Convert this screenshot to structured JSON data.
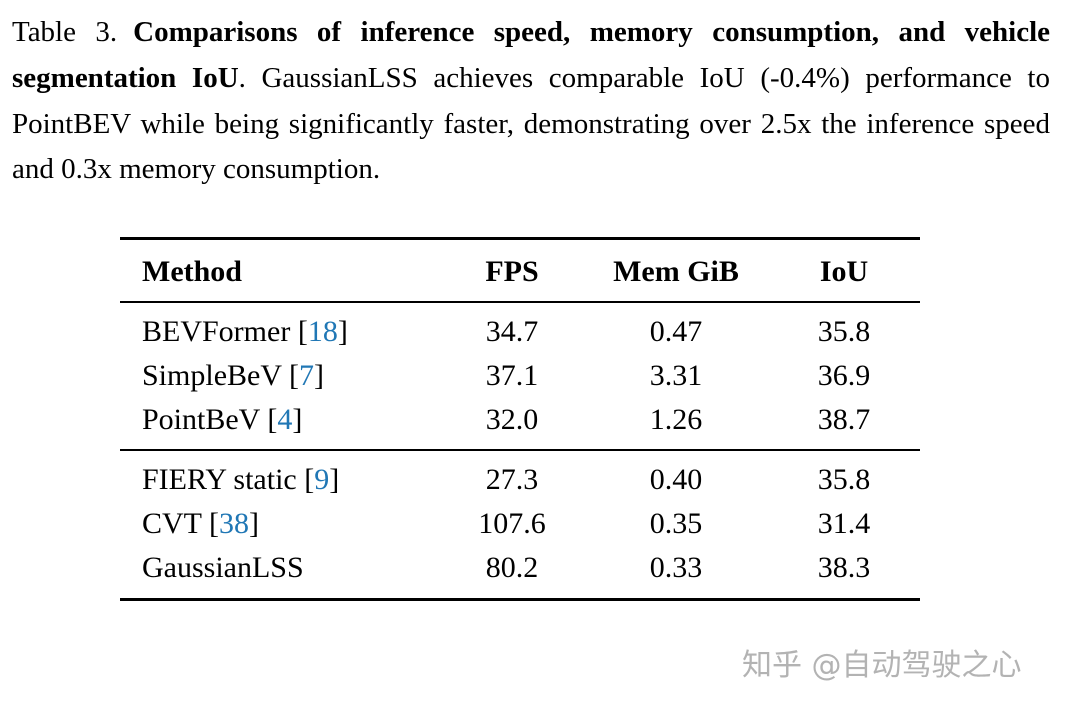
{
  "colors": {
    "citation_link": "#2077b5",
    "text": "#000000",
    "watermark": "#a8a8a8",
    "background": "#ffffff"
  },
  "caption": {
    "label": "Table 3.",
    "bold": "Comparisons of inference speed, memory consumption, and vehicle segmentation IoU",
    "rest": ". GaussianLSS achieves comparable IoU (-0.4%) performance to PointBEV while being significantly faster, demonstrating over 2.5x the inference speed and 0.3x memory consumption."
  },
  "table": {
    "headers": [
      "Method",
      "FPS",
      "Mem GiB",
      "IoU"
    ],
    "rows": [
      {
        "name": "BEVFormer ",
        "bracket_open": "[",
        "cite": "18",
        "bracket_close": "]",
        "fps": "34.7",
        "mem": "0.47",
        "iou": "35.8"
      },
      {
        "name": "SimpleBeV ",
        "bracket_open": "[",
        "cite": "7",
        "bracket_close": "]",
        "fps": "37.1",
        "mem": "3.31",
        "iou": "36.9"
      },
      {
        "name": "PointBeV ",
        "bracket_open": "[",
        "cite": "4",
        "bracket_close": "]",
        "fps": "32.0",
        "mem": "1.26",
        "iou": "38.7"
      },
      {
        "name": "FIERY static ",
        "bracket_open": "[",
        "cite": "9",
        "bracket_close": "]",
        "fps": "27.3",
        "mem": "0.40",
        "iou": "35.8"
      },
      {
        "name": "CVT ",
        "bracket_open": "[",
        "cite": "38",
        "bracket_close": "]",
        "fps": "107.6",
        "mem": "0.35",
        "iou": "31.4"
      },
      {
        "name": "GaussianLSS",
        "fps": "80.2",
        "mem": "0.33",
        "iou": "38.3"
      }
    ]
  },
  "watermark": {
    "text": "知乎 @自动驾驶之心"
  }
}
